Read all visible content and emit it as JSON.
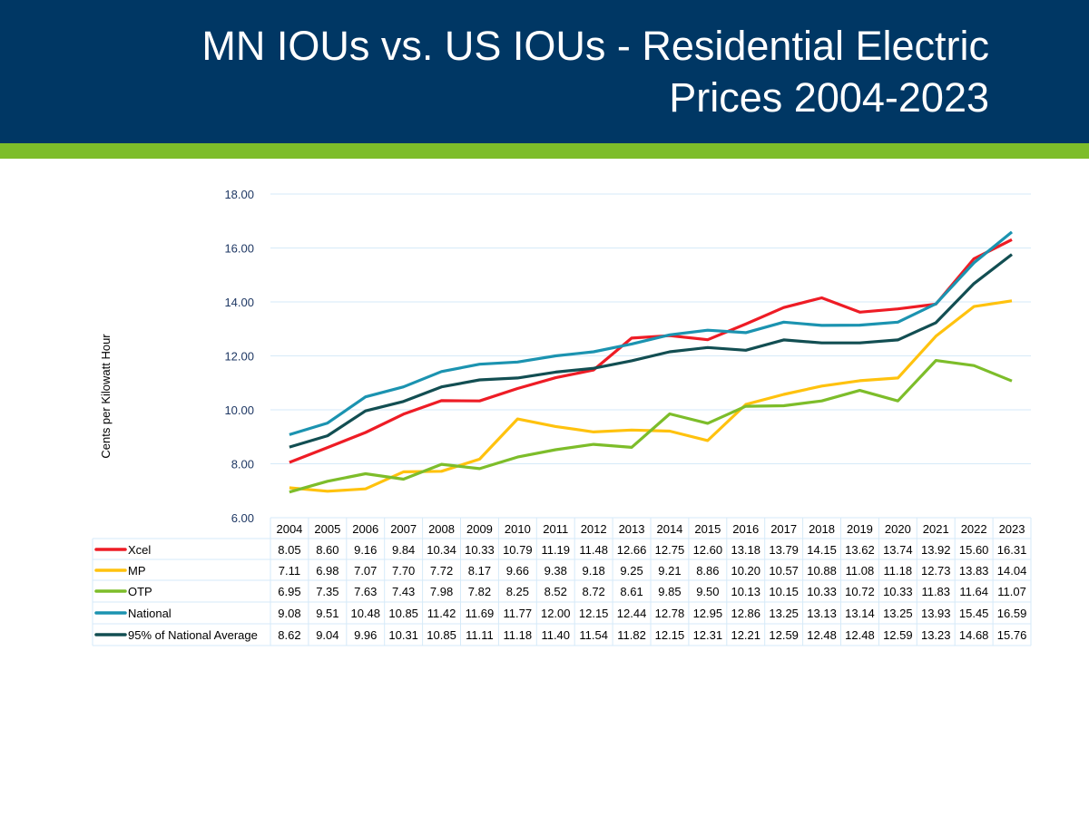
{
  "header": {
    "title": "MN IOUs vs. US IOUs - Residential Electric Prices 2004-2023"
  },
  "colors": {
    "header_bg": "#003764",
    "accent_bar": "#7dbd2a",
    "grid": "#d6eaf8"
  },
  "chart_data": {
    "type": "line",
    "title": "",
    "ylabel": "Cents per Kilowatt Hour",
    "xlabel": "",
    "ylim": [
      6,
      18
    ],
    "yticks": [
      "6.00",
      "8.00",
      "10.00",
      "12.00",
      "14.00",
      "16.00",
      "18.00"
    ],
    "grid": true,
    "legend": "data-table",
    "categories": [
      "2004",
      "2005",
      "2006",
      "2007",
      "2008",
      "2009",
      "2010",
      "2011",
      "2012",
      "2013",
      "2014",
      "2015",
      "2016",
      "2017",
      "2018",
      "2019",
      "2020",
      "2021",
      "2022",
      "2023"
    ],
    "series": [
      {
        "name": "Xcel",
        "color": "#ee1c25",
        "values": [
          8.05,
          8.6,
          9.16,
          9.84,
          10.34,
          10.33,
          10.79,
          11.19,
          11.48,
          12.66,
          12.75,
          12.6,
          13.18,
          13.79,
          14.15,
          13.62,
          13.74,
          13.92,
          15.6,
          16.31
        ]
      },
      {
        "name": "MP",
        "color": "#ffc20e",
        "values": [
          7.11,
          6.98,
          7.07,
          7.7,
          7.72,
          8.17,
          9.66,
          9.38,
          9.18,
          9.25,
          9.21,
          8.86,
          10.2,
          10.57,
          10.88,
          11.08,
          11.18,
          12.73,
          13.83,
          14.04
        ]
      },
      {
        "name": "OTP",
        "color": "#7dbd2a",
        "values": [
          6.95,
          7.35,
          7.63,
          7.43,
          7.98,
          7.82,
          8.25,
          8.52,
          8.72,
          8.61,
          9.85,
          9.5,
          10.13,
          10.15,
          10.33,
          10.72,
          10.33,
          11.83,
          11.64,
          11.07
        ]
      },
      {
        "name": "National",
        "color": "#1b93b0",
        "values": [
          9.08,
          9.51,
          10.48,
          10.85,
          11.42,
          11.69,
          11.77,
          12.0,
          12.15,
          12.44,
          12.78,
          12.95,
          12.86,
          13.25,
          13.13,
          13.14,
          13.25,
          13.93,
          15.45,
          16.59
        ]
      },
      {
        "name": "95% of National Average",
        "color": "#124e52",
        "values": [
          8.62,
          9.04,
          9.96,
          10.31,
          10.85,
          11.11,
          11.18,
          11.4,
          11.54,
          11.82,
          12.15,
          12.31,
          12.21,
          12.59,
          12.48,
          12.48,
          12.59,
          13.23,
          14.68,
          15.76
        ]
      }
    ]
  }
}
